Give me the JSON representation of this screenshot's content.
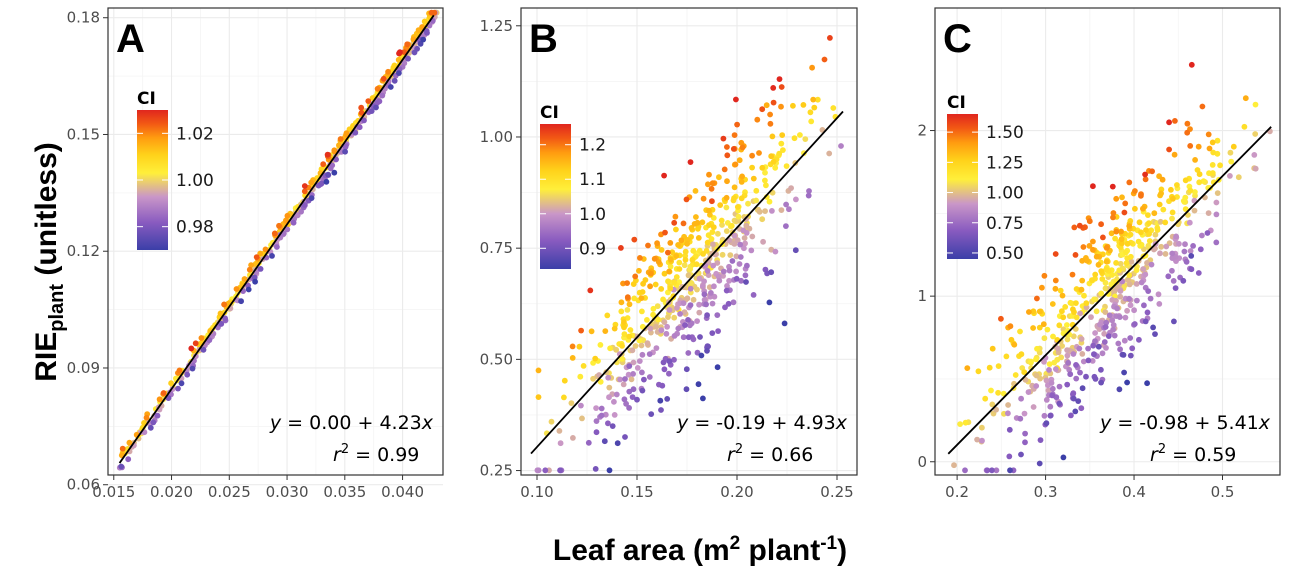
{
  "axis_titles": {
    "y_main": "RIE",
    "y_sub": "plant",
    "y_unit": " (unitless)",
    "x_main": "Leaf area (m",
    "x_sup1": "2",
    "x_mid": " plant",
    "x_sup2": "-1",
    "x_end": ")"
  },
  "colors": {
    "gradient": [
      "#3b3fa8",
      "#8a5cc0",
      "#c996c8",
      "#ffef3a",
      "#ffd21a",
      "#ff9d10",
      "#f25a14",
      "#e0261e"
    ],
    "fit_line": "#000000",
    "grid": "#ebebeb",
    "panel_border": "#333333"
  },
  "chart_data": [
    {
      "type": "scatter",
      "panel": "A",
      "color_variable": "CI",
      "xlim": [
        0.0145,
        0.0435
      ],
      "ylim": [
        0.0625,
        0.1825
      ],
      "xticks": [
        0.015,
        0.02,
        0.025,
        0.03,
        0.035,
        0.04
      ],
      "xtick_labels": [
        "0.015",
        "0.020",
        "0.025",
        "0.030",
        "0.035",
        "0.040"
      ],
      "yticks": [
        0.06,
        0.09,
        0.12,
        0.15,
        0.18
      ],
      "ytick_labels": [
        "0.06",
        "0.09",
        "0.12",
        "0.15",
        "0.18"
      ],
      "grid": true,
      "fit": {
        "intercept": 0.0,
        "slope": 4.23,
        "x_range": [
          0.0155,
          0.0427
        ]
      },
      "equation": {
        "y_pre": "y",
        "y_text": " = 0.00 + 4.23",
        "x_var": "x",
        "r_pre": "r",
        "r_sup": "2",
        "r_text": " = 0.99"
      },
      "legend": {
        "title": "CI",
        "range": [
          0.97,
          1.03
        ],
        "tick_values": [
          1.02,
          1.0,
          0.98
        ],
        "tick_labels": [
          "1.02",
          "1.00",
          "0.98"
        ]
      },
      "points": {
        "n": 560,
        "x_range": [
          0.0155,
          0.043
        ],
        "ci_range": [
          0.97,
          1.03
        ],
        "noise_sd": 0.0012
      }
    },
    {
      "type": "scatter",
      "panel": "B",
      "color_variable": "CI",
      "xlim": [
        0.092,
        0.26
      ],
      "ylim": [
        0.24,
        1.29
      ],
      "xticks": [
        0.1,
        0.15,
        0.2,
        0.25
      ],
      "xtick_labels": [
        "0.10",
        "0.15",
        "0.20",
        "0.25"
      ],
      "yticks": [
        0.25,
        0.5,
        0.75,
        1.0,
        1.25
      ],
      "ytick_labels": [
        "0.25",
        "0.50",
        "0.75",
        "1.00",
        "1.25"
      ],
      "grid": true,
      "fit": {
        "intercept": -0.19,
        "slope": 4.93,
        "x_range": [
          0.097,
          0.253
        ]
      },
      "equation": {
        "y_pre": "y",
        "y_text": " = -0.19 + 4.93",
        "x_var": "x",
        "r_pre": "r",
        "r_sup": "2",
        "r_text": " = 0.66"
      },
      "legend": {
        "title": "CI",
        "range": [
          0.84,
          1.26
        ],
        "tick_values": [
          1.2,
          1.1,
          1.0,
          0.9
        ],
        "tick_labels": [
          "1.2",
          "1.1",
          "1.0",
          "0.9"
        ]
      },
      "points": {
        "n": 640,
        "x_range": [
          0.097,
          0.253
        ],
        "ci_range": [
          0.84,
          1.26
        ],
        "noise_sd": 0.1
      }
    },
    {
      "type": "scatter",
      "panel": "C",
      "color_variable": "CI",
      "xlim": [
        0.175,
        0.565
      ],
      "ylim": [
        -0.08,
        2.74
      ],
      "xticks": [
        0.2,
        0.3,
        0.4,
        0.5
      ],
      "xtick_labels": [
        "0.2",
        "0.3",
        "0.4",
        "0.5"
      ],
      "yticks": [
        0,
        1,
        2
      ],
      "ytick_labels": [
        "0",
        "1",
        "2"
      ],
      "grid": true,
      "fit": {
        "intercept": -0.98,
        "slope": 5.41,
        "x_range": [
          0.19,
          0.555
        ]
      },
      "equation": {
        "y_pre": "y",
        "y_text": " = -0.98 + 5.41",
        "x_var": "x",
        "r_pre": "r",
        "r_sup": "2",
        "r_text": " = 0.59"
      },
      "legend": {
        "title": "CI",
        "range": [
          0.45,
          1.65
        ],
        "tick_values": [
          1.5,
          1.25,
          1.0,
          0.75,
          0.5
        ],
        "tick_labels": [
          "1.50",
          "1.25",
          "1.00",
          "0.75",
          "0.50"
        ]
      },
      "points": {
        "n": 640,
        "x_range": [
          0.19,
          0.555
        ],
        "ci_range": [
          0.45,
          1.65
        ],
        "noise_sd": 0.26
      }
    }
  ]
}
